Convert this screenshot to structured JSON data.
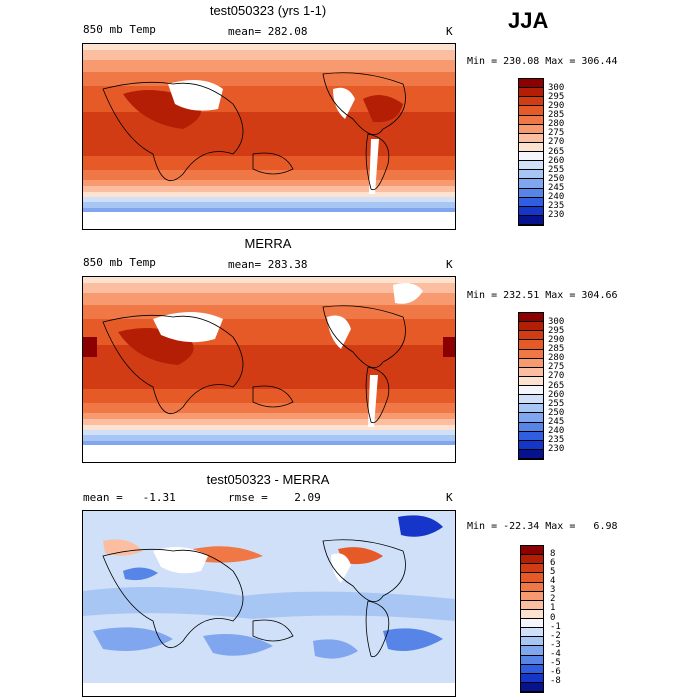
{
  "season": "JJA",
  "panels": [
    {
      "id": "model",
      "title": "test050323 (yrs 1-1)",
      "left_label": "850 mb Temp",
      "center_label": "mean= 282.08",
      "units": "K",
      "minmax": "Min = 230.08 Max = 306.44",
      "colorbar": {
        "labels": [
          "300",
          "295",
          "290",
          "285",
          "280",
          "275",
          "270",
          "265",
          "260",
          "255",
          "250",
          "245",
          "240",
          "235",
          "230"
        ],
        "colors": [
          "#8b0000",
          "#b41e05",
          "#d23c14",
          "#e65a28",
          "#f07846",
          "#f89a70",
          "#fbbea0",
          "#fde2d0",
          "#f4f6fc",
          "#cfe0f8",
          "#a8c6f3",
          "#7fa6ee",
          "#5784e7",
          "#2f5ee0",
          "#1536c8",
          "#06128e"
        ]
      }
    },
    {
      "id": "obs",
      "title": "MERRA",
      "left_label": "850 mb Temp",
      "center_label": "mean= 283.38",
      "units": "K",
      "minmax": "Min = 232.51 Max = 304.66",
      "colorbar": {
        "labels": [
          "300",
          "295",
          "290",
          "285",
          "280",
          "275",
          "270",
          "265",
          "260",
          "255",
          "250",
          "245",
          "240",
          "235",
          "230"
        ],
        "colors": [
          "#8b0000",
          "#b41e05",
          "#d23c14",
          "#e65a28",
          "#f07846",
          "#f89a70",
          "#fbbea0",
          "#fde2d0",
          "#f4f6fc",
          "#cfe0f8",
          "#a8c6f3",
          "#7fa6ee",
          "#5784e7",
          "#2f5ee0",
          "#1536c8",
          "#06128e"
        ]
      }
    },
    {
      "id": "diff",
      "title": "test050323 - MERRA",
      "left_label": "mean =   -1.31",
      "center_label": "rmse =    2.09",
      "units": "K",
      "minmax": "Min = -22.34 Max =   6.98",
      "colorbar": {
        "labels": [
          "8",
          "6",
          "5",
          "4",
          "3",
          "2",
          "1",
          "0",
          "-1",
          "-2",
          "-3",
          "-4",
          "-5",
          "-6",
          "-8"
        ],
        "colors": [
          "#8b0000",
          "#b41e05",
          "#d23c14",
          "#e65a28",
          "#f07846",
          "#f89a70",
          "#fbbea0",
          "#fde2d0",
          "#f4f6fc",
          "#cfe0f8",
          "#a8c6f3",
          "#7fa6ee",
          "#5784e7",
          "#2f5ee0",
          "#1536c8",
          "#06128e"
        ]
      }
    }
  ]
}
